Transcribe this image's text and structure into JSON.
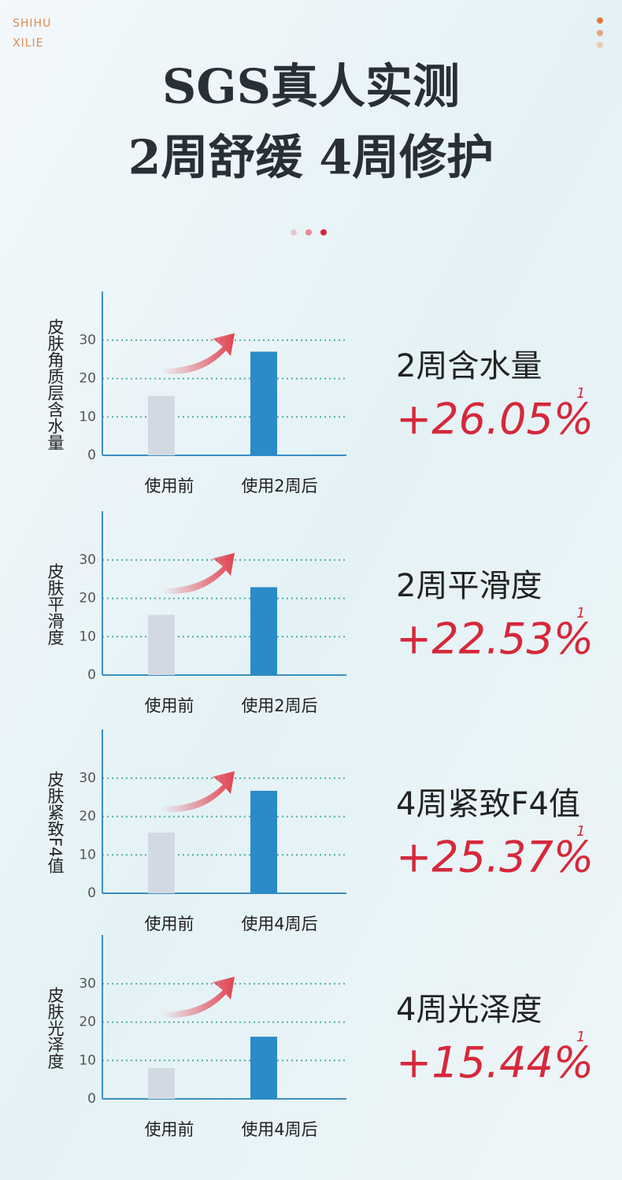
{
  "brand": [
    "SHIHU",
    "XILIE"
  ],
  "title_lines": [
    "SGS真人实测",
    "2周舒缓 4周修护"
  ],
  "chart_data": [
    {
      "type": "bar",
      "ylabel": "皮肤角质层含水量",
      "categories": [
        "使用前",
        "使用2周后"
      ],
      "values": [
        15.5,
        27
      ],
      "colors": [
        "#d3d9e2",
        "#2a8bc8"
      ],
      "ylim": [
        0,
        42.7
      ],
      "yticks": [
        0,
        10,
        20,
        30
      ],
      "grid": true,
      "annotation": {
        "title": "2周含水量",
        "value": "+26.05%",
        "note": "1"
      }
    },
    {
      "type": "bar",
      "ylabel": "皮肤平滑度",
      "categories": [
        "使用前",
        "使用2周后"
      ],
      "values": [
        15.7,
        22.9
      ],
      "colors": [
        "#d3d9e2",
        "#2a8bc8"
      ],
      "ylim": [
        0,
        42.7
      ],
      "yticks": [
        0,
        10,
        20,
        30
      ],
      "grid": true,
      "annotation": {
        "title": "2周平滑度",
        "value": "+22.53%",
        "note": "1"
      }
    },
    {
      "type": "bar",
      "ylabel": "皮肤紧致F4值",
      "categories": [
        "使用前",
        "使用4周后"
      ],
      "values": [
        15.8,
        26.7
      ],
      "colors": [
        "#d3d9e2",
        "#2a8bc8"
      ],
      "ylim": [
        0,
        42.7
      ],
      "yticks": [
        0,
        10,
        20,
        30
      ],
      "grid": true,
      "annotation": {
        "title": "4周紧致F4值",
        "value": "+25.37%",
        "note": "1"
      }
    },
    {
      "type": "bar",
      "ylabel": "皮肤光泽度",
      "categories": [
        "使用前",
        "使用4周后"
      ],
      "values": [
        8,
        16.2
      ],
      "colors": [
        "#d3d9e2",
        "#2a8bc8"
      ],
      "ylim": [
        0,
        42.7
      ],
      "yticks": [
        0,
        10,
        20,
        30
      ],
      "grid": true,
      "annotation": {
        "title": "4周光泽度",
        "value": "+15.44%",
        "note": "1"
      }
    }
  ]
}
